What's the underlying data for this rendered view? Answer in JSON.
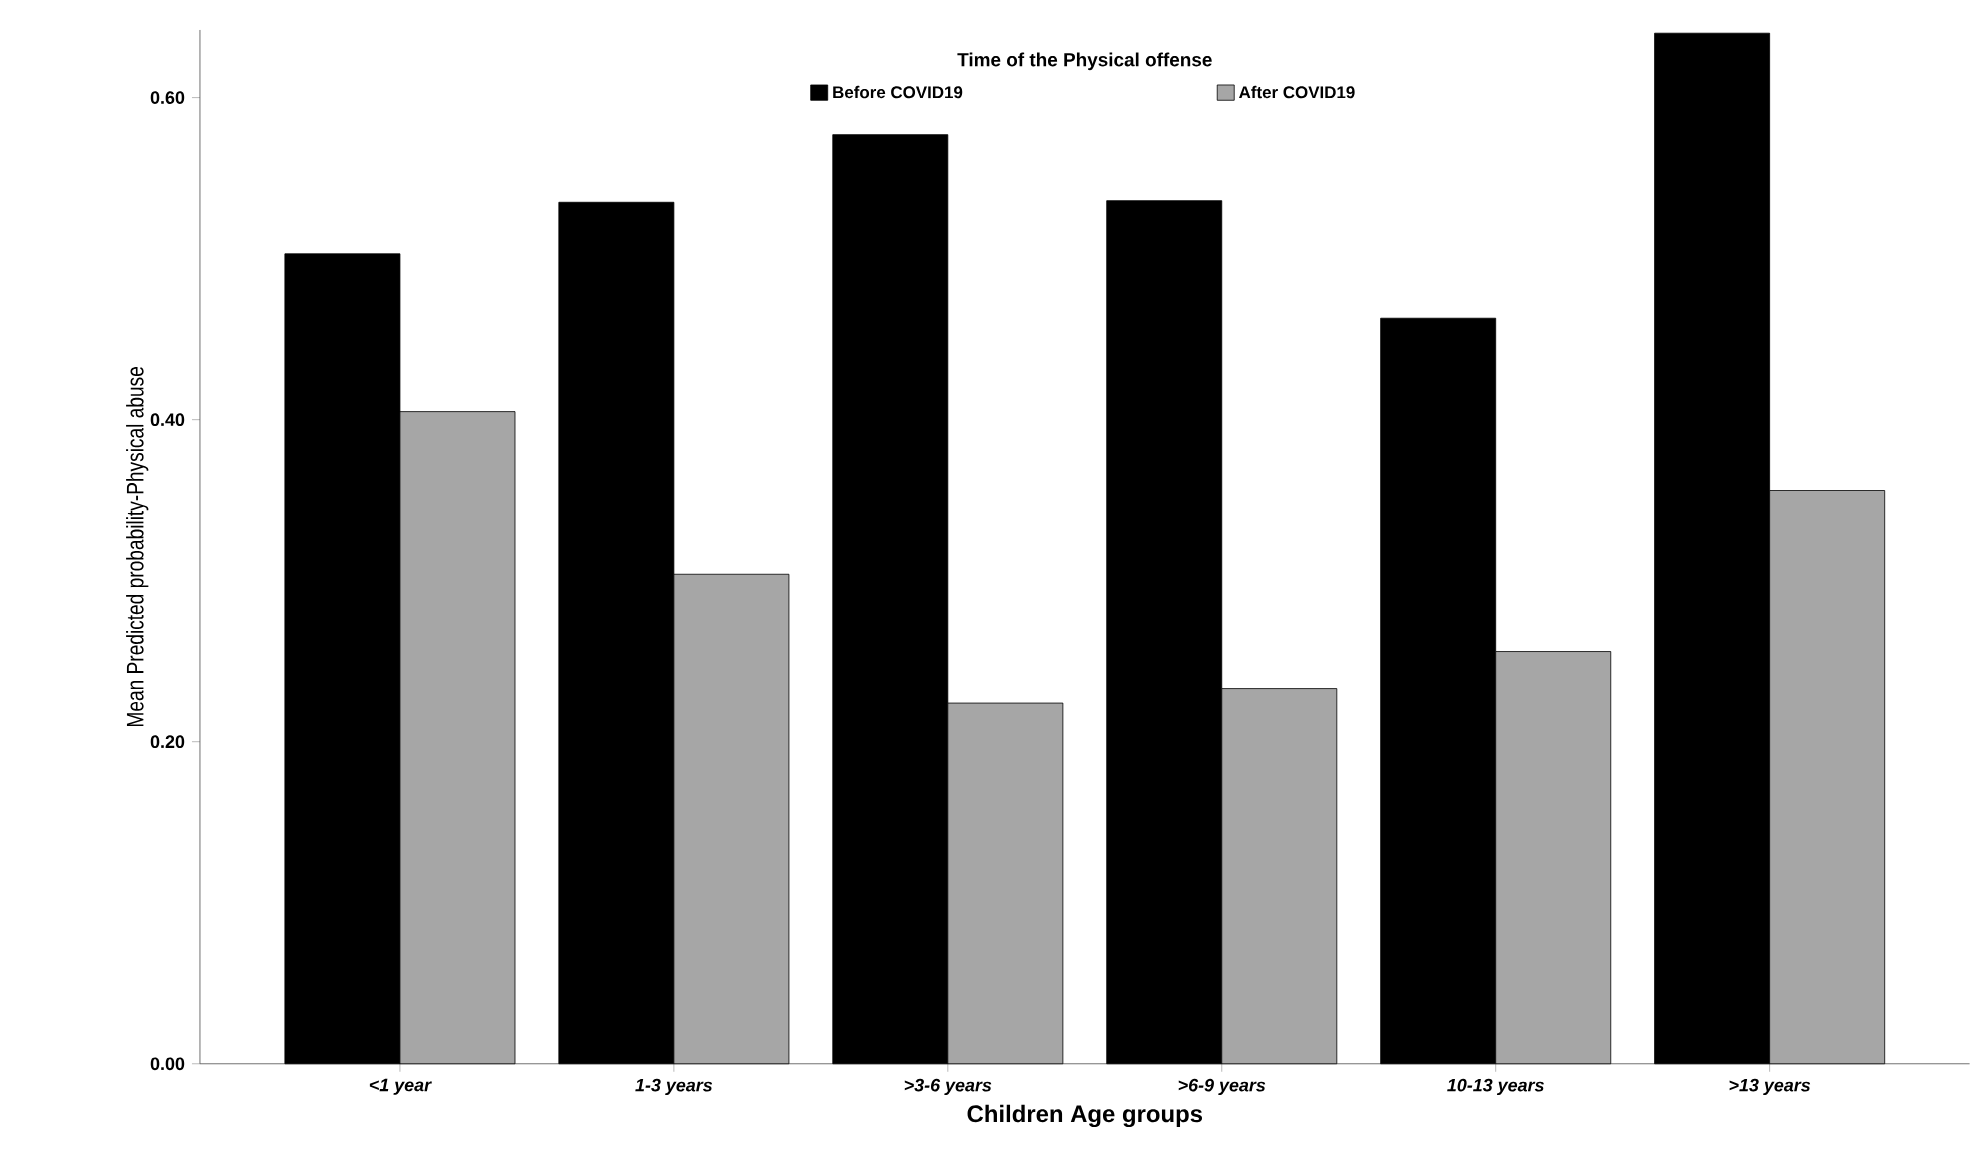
{
  "chart_data": {
    "type": "bar",
    "xlabel": "Children Age groups",
    "ylabel": "Mean Predicted probability-Physical abuse",
    "legend_title": "Time of the Physical offense",
    "legend": "top",
    "categories": [
      "<1 year",
      "1-3 years",
      ">3-6 years",
      ">6-9 years",
      "10-13 years",
      ">13 years"
    ],
    "series": [
      {
        "name": "Before COVID19",
        "color": "#000000",
        "values": [
          0.503,
          0.535,
          0.577,
          0.536,
          0.463,
          0.64
        ]
      },
      {
        "name": "After COVID19",
        "color": "#a6a6a6",
        "values": [
          0.405,
          0.304,
          0.224,
          0.233,
          0.256,
          0.356
        ]
      }
    ],
    "ylim": [
      0,
      0.642
    ],
    "yticks": [
      {
        "value": 0,
        "label": "0.00"
      },
      {
        "value": 0.2,
        "label": "0.20"
      },
      {
        "value": 0.4,
        "label": "0.40"
      },
      {
        "value": 0.6,
        "label": "0.60"
      }
    ],
    "grid": false
  }
}
